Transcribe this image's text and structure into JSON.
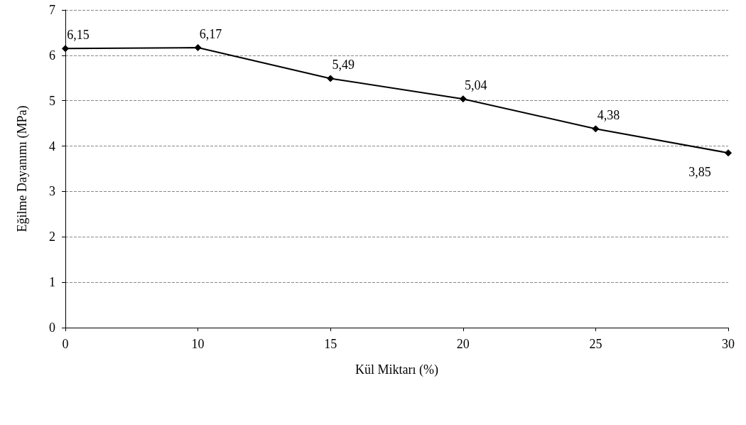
{
  "chart_data": {
    "type": "line",
    "xlabel": "Kül Miktarı (%)",
    "ylabel": "Eğilme Dayanımı (MPa)",
    "categories": [
      "0",
      "10",
      "15",
      "20",
      "25",
      "30"
    ],
    "series": [
      {
        "color": "#000000",
        "values": [
          6.15,
          6.17,
          5.49,
          5.04,
          4.38,
          3.85
        ],
        "value_labels": [
          "6,15",
          "6,17",
          "5,49",
          "5,04",
          "4,38",
          "3,85"
        ]
      }
    ],
    "ylim": [
      0,
      7
    ],
    "yticks": [
      0,
      1,
      2,
      3,
      4,
      5,
      6,
      7
    ],
    "grid": "y",
    "marker": "diamond",
    "line_style": "solid"
  }
}
